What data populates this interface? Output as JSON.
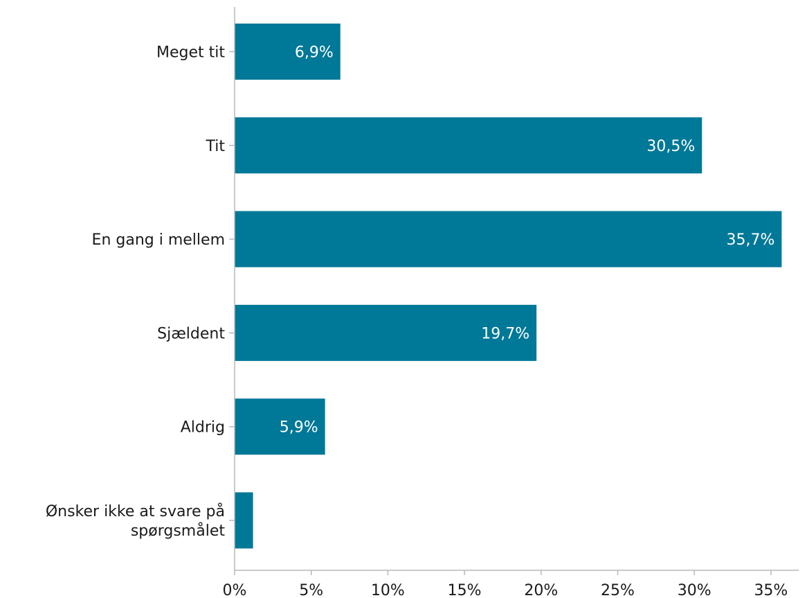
{
  "chart_data": {
    "type": "bar",
    "orientation": "horizontal",
    "categories": [
      "Meget tit",
      "Tit",
      "En gang i mellem",
      "Sjældent",
      "Aldrig",
      "Ønsker ikke at svare på spørgsmålet"
    ],
    "category_lines": [
      [
        "Meget tit"
      ],
      [
        "Tit"
      ],
      [
        "En gang i mellem"
      ],
      [
        "Sjældent"
      ],
      [
        "Aldrig"
      ],
      [
        "Ønsker ikke at svare på",
        "spørgsmålet"
      ]
    ],
    "values": [
      6.9,
      30.5,
      35.7,
      19.7,
      5.9,
      1.2
    ],
    "value_labels": [
      "6,9%",
      "30,5%",
      "35,7%",
      "19,7%",
      "5,9%",
      ""
    ],
    "xlim": [
      0,
      37
    ],
    "xticks": [
      0,
      5,
      10,
      15,
      20,
      25,
      30,
      35
    ],
    "xtick_labels": [
      "0%",
      "5%",
      "10%",
      "15%",
      "20%",
      "25%",
      "30%",
      "35%"
    ],
    "grid": false,
    "bar_color": "#007898"
  }
}
